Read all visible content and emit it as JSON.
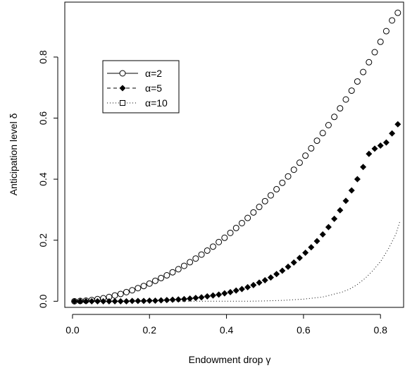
{
  "chart_data": {
    "type": "scatter",
    "xlabel": "Endowment drop γ",
    "ylabel": "Anticipation level  δ",
    "xlim": [
      -0.02,
      0.86
    ],
    "ylim": [
      -0.02,
      0.98
    ],
    "xticks": [
      0.0,
      0.2,
      0.4,
      0.6,
      0.8
    ],
    "yticks": [
      0.0,
      0.2,
      0.4,
      0.6,
      0.8
    ],
    "xtick_labels": [
      "0.0",
      "0.2",
      "0.4",
      "0.6",
      "0.8"
    ],
    "ytick_labels": [
      "0.0",
      "0.2",
      "0.4",
      "0.6",
      "0.8"
    ],
    "legend_position": "upper-left",
    "grid": false,
    "series": [
      {
        "name": "α=2",
        "marker": "open-circle",
        "line": "solid",
        "x": [
          0.005,
          0.02,
          0.035,
          0.05,
          0.065,
          0.08,
          0.095,
          0.11,
          0.125,
          0.14,
          0.155,
          0.17,
          0.185,
          0.2,
          0.215,
          0.23,
          0.245,
          0.26,
          0.275,
          0.29,
          0.305,
          0.32,
          0.335,
          0.35,
          0.365,
          0.38,
          0.395,
          0.41,
          0.425,
          0.44,
          0.455,
          0.47,
          0.485,
          0.5,
          0.515,
          0.53,
          0.545,
          0.56,
          0.575,
          0.59,
          0.605,
          0.62,
          0.635,
          0.65,
          0.665,
          0.68,
          0.695,
          0.71,
          0.725,
          0.74,
          0.755,
          0.77,
          0.785,
          0.8,
          0.815,
          0.83,
          0.845
        ],
        "y": [
          0.0,
          0.001,
          0.002,
          0.004,
          0.007,
          0.01,
          0.014,
          0.019,
          0.024,
          0.03,
          0.036,
          0.043,
          0.05,
          0.058,
          0.067,
          0.076,
          0.085,
          0.095,
          0.105,
          0.116,
          0.128,
          0.14,
          0.153,
          0.166,
          0.179,
          0.194,
          0.208,
          0.224,
          0.24,
          0.256,
          0.273,
          0.291,
          0.309,
          0.328,
          0.347,
          0.367,
          0.388,
          0.409,
          0.431,
          0.454,
          0.477,
          0.501,
          0.526,
          0.551,
          0.577,
          0.604,
          0.632,
          0.661,
          0.69,
          0.72,
          0.751,
          0.783,
          0.816,
          0.85,
          0.885,
          0.92,
          0.945
        ]
      },
      {
        "name": "α=5",
        "marker": "filled-diamond",
        "line": "dashed",
        "x": [
          0.005,
          0.02,
          0.035,
          0.05,
          0.065,
          0.08,
          0.095,
          0.11,
          0.125,
          0.14,
          0.155,
          0.17,
          0.185,
          0.2,
          0.215,
          0.23,
          0.245,
          0.26,
          0.275,
          0.29,
          0.305,
          0.32,
          0.335,
          0.35,
          0.365,
          0.38,
          0.395,
          0.41,
          0.425,
          0.44,
          0.455,
          0.47,
          0.485,
          0.5,
          0.515,
          0.53,
          0.545,
          0.56,
          0.575,
          0.59,
          0.605,
          0.62,
          0.635,
          0.65,
          0.665,
          0.68,
          0.695,
          0.71,
          0.725,
          0.74,
          0.755,
          0.77,
          0.785,
          0.8,
          0.815,
          0.83,
          0.845
        ],
        "y": [
          0.0,
          0.0,
          0.0,
          0.0,
          0.0,
          0.0,
          0.0,
          0.0,
          0.0,
          0.0,
          0.001,
          0.001,
          0.001,
          0.002,
          0.002,
          0.003,
          0.004,
          0.005,
          0.006,
          0.007,
          0.009,
          0.011,
          0.013,
          0.016,
          0.019,
          0.022,
          0.026,
          0.03,
          0.035,
          0.04,
          0.046,
          0.053,
          0.061,
          0.069,
          0.078,
          0.089,
          0.1,
          0.113,
          0.127,
          0.142,
          0.159,
          0.177,
          0.197,
          0.219,
          0.243,
          0.27,
          0.298,
          0.329,
          0.363,
          0.4,
          0.44,
          0.483,
          0.5,
          0.51,
          0.52,
          0.55,
          0.58
        ]
      },
      {
        "name": "α=10",
        "marker": "open-square",
        "line": "dotted",
        "x": [
          0.0,
          0.05,
          0.1,
          0.15,
          0.2,
          0.25,
          0.3,
          0.35,
          0.4,
          0.45,
          0.5,
          0.55,
          0.6,
          0.65,
          0.7,
          0.72,
          0.74,
          0.76,
          0.78,
          0.8,
          0.82,
          0.84,
          0.85
        ],
        "y": [
          0.0,
          0.0,
          0.0,
          0.0,
          0.0,
          0.0,
          0.0,
          0.0,
          0.0,
          0.0,
          0.001,
          0.003,
          0.007,
          0.014,
          0.03,
          0.04,
          0.055,
          0.075,
          0.1,
          0.13,
          0.17,
          0.22,
          0.26
        ]
      }
    ]
  }
}
